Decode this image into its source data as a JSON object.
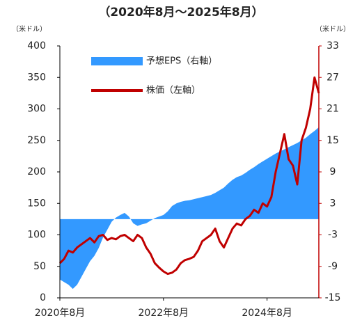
{
  "chart_data": {
    "type": "combo",
    "title": "（2020年8月～2025年8月）",
    "y_unit": "（米ドル）",
    "y2_unit": "（米ドル）",
    "categories": [
      "2020年8月",
      null,
      null,
      null,
      null,
      null,
      null,
      null,
      null,
      null,
      null,
      null,
      null,
      null,
      null,
      null,
      null,
      null,
      null,
      null,
      null,
      null,
      null,
      null,
      "2022年8月",
      null,
      null,
      null,
      null,
      null,
      null,
      null,
      null,
      null,
      null,
      null,
      null,
      null,
      null,
      null,
      null,
      null,
      null,
      null,
      null,
      null,
      null,
      null,
      "2024年8月",
      null,
      null,
      null,
      null,
      null,
      null,
      null,
      null,
      null,
      null,
      null,
      null
    ],
    "ylim": [
      0,
      400
    ],
    "yticks": [
      0,
      50,
      100,
      150,
      200,
      250,
      300,
      350,
      400
    ],
    "y2lim": [
      -15,
      33
    ],
    "y2ticks": [
      -15,
      -9,
      -3,
      3,
      9,
      15,
      21,
      27,
      33
    ],
    "series": [
      {
        "name": "予想EPS（右軸）",
        "type": "area",
        "axis": "y2",
        "color": "#3399ff",
        "values": [
          -11.5,
          -12,
          -12.5,
          -13.3,
          -12.5,
          -11,
          -9.5,
          -8,
          -7,
          -5.5,
          -3.5,
          -2,
          -0.5,
          0.3,
          0.8,
          1.2,
          0.5,
          -0.8,
          -1.3,
          -1.0,
          -0.8,
          -0.3,
          0.2,
          0.5,
          0.8,
          1.5,
          2.5,
          3.0,
          3.3,
          3.5,
          3.6,
          3.8,
          4.0,
          4.2,
          4.4,
          4.6,
          5.0,
          5.5,
          6.0,
          6.8,
          7.5,
          8.0,
          8.3,
          8.8,
          9.4,
          9.9,
          10.5,
          11.0,
          11.5,
          12.0,
          12.5,
          12.9,
          13.3,
          13.7,
          14.1,
          14.5,
          15.0,
          15.5,
          16.2,
          16.8,
          17.5
        ]
      },
      {
        "name": "株価（左軸）",
        "type": "line",
        "color": "#c00000",
        "values": [
          55,
          62,
          75,
          72,
          80,
          85,
          90,
          95,
          88,
          98,
          100,
          92,
          95,
          93,
          98,
          100,
          95,
          90,
          100,
          95,
          80,
          70,
          55,
          48,
          42,
          38,
          40,
          45,
          55,
          60,
          62,
          65,
          75,
          90,
          95,
          100,
          110,
          90,
          80,
          95,
          110,
          118,
          115,
          125,
          130,
          140,
          135,
          150,
          145,
          160,
          200,
          230,
          260,
          220,
          210,
          180,
          250,
          270,
          300,
          350,
          325
        ]
      }
    ]
  }
}
